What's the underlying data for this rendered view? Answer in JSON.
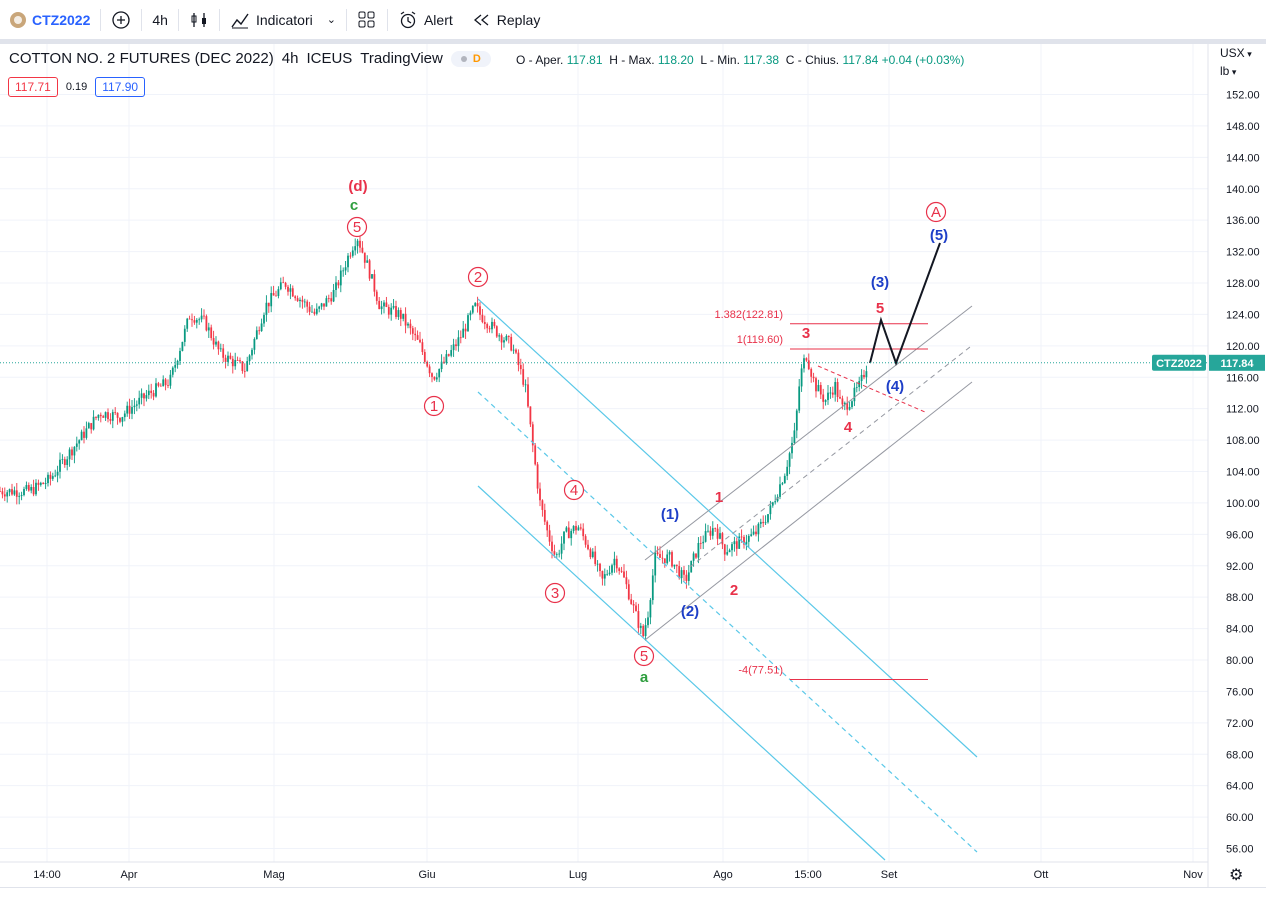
{
  "toolbar": {
    "symbol": "CTZ2022",
    "interval": "4h",
    "indicators_label": "Indicatori",
    "alert_label": "Alert",
    "replay_label": "Replay"
  },
  "header": {
    "title": "COTTON NO. 2 FUTURES (DEC 2022)",
    "interval": "4h",
    "exchange": "ICEUS",
    "source": "TradingView",
    "badge": "D"
  },
  "ohlc": {
    "o_label": "O - Aper.",
    "o_value": "117.81",
    "h_label": "H - Max.",
    "h_value": "118.20",
    "l_label": "L - Min.",
    "l_value": "117.38",
    "c_label": "C - Chius.",
    "c_value": "117.84",
    "change": "+0.04 (+0.03%)"
  },
  "quote": {
    "bid": "117.71",
    "spread": "0.19",
    "ask": "117.90"
  },
  "scale": {
    "currency": "USX",
    "unit": "lb"
  },
  "colors": {
    "up": "#089981",
    "down": "#f23645",
    "channel": "#5ac8e8",
    "wave_red": "#e8314a",
    "wave_blue": "#1e3fc8",
    "wave_green": "#2e9e3e",
    "last_price": "#26a69a"
  },
  "chart_data": {
    "type": "candlestick",
    "symbol_label": "CTZ2022",
    "last_price": "117.84",
    "y_ticks": [
      "152.00",
      "148.00",
      "144.00",
      "140.00",
      "136.00",
      "132.00",
      "128.00",
      "124.00",
      "120.00",
      "116.00",
      "112.00",
      "108.00",
      "104.00",
      "100.00",
      "96.00",
      "92.00",
      "88.00",
      "84.00",
      "80.00",
      "76.00",
      "72.00",
      "68.00",
      "64.00",
      "60.00",
      "56.00"
    ],
    "x_ticks": [
      "14:00",
      "Apr",
      "Mag",
      "Giu",
      "Lug",
      "Ago",
      "15:00",
      "Set",
      "Ott",
      "Nov"
    ],
    "ylim": [
      54,
      156
    ],
    "fib_levels": [
      {
        "label": "1.382(122.81)",
        "value": 122.81
      },
      {
        "label": "1(119.60)",
        "value": 119.6
      },
      {
        "label": "-4(77.51)",
        "value": 77.51
      }
    ],
    "wave_labels": [
      "(d)",
      "c",
      "5",
      "2",
      "1",
      "3",
      "4",
      "5",
      "a",
      "(1)",
      "(2)",
      "1",
      "2",
      "3",
      "4",
      "5",
      "(3)",
      "(4)",
      "(5)",
      "A"
    ]
  }
}
